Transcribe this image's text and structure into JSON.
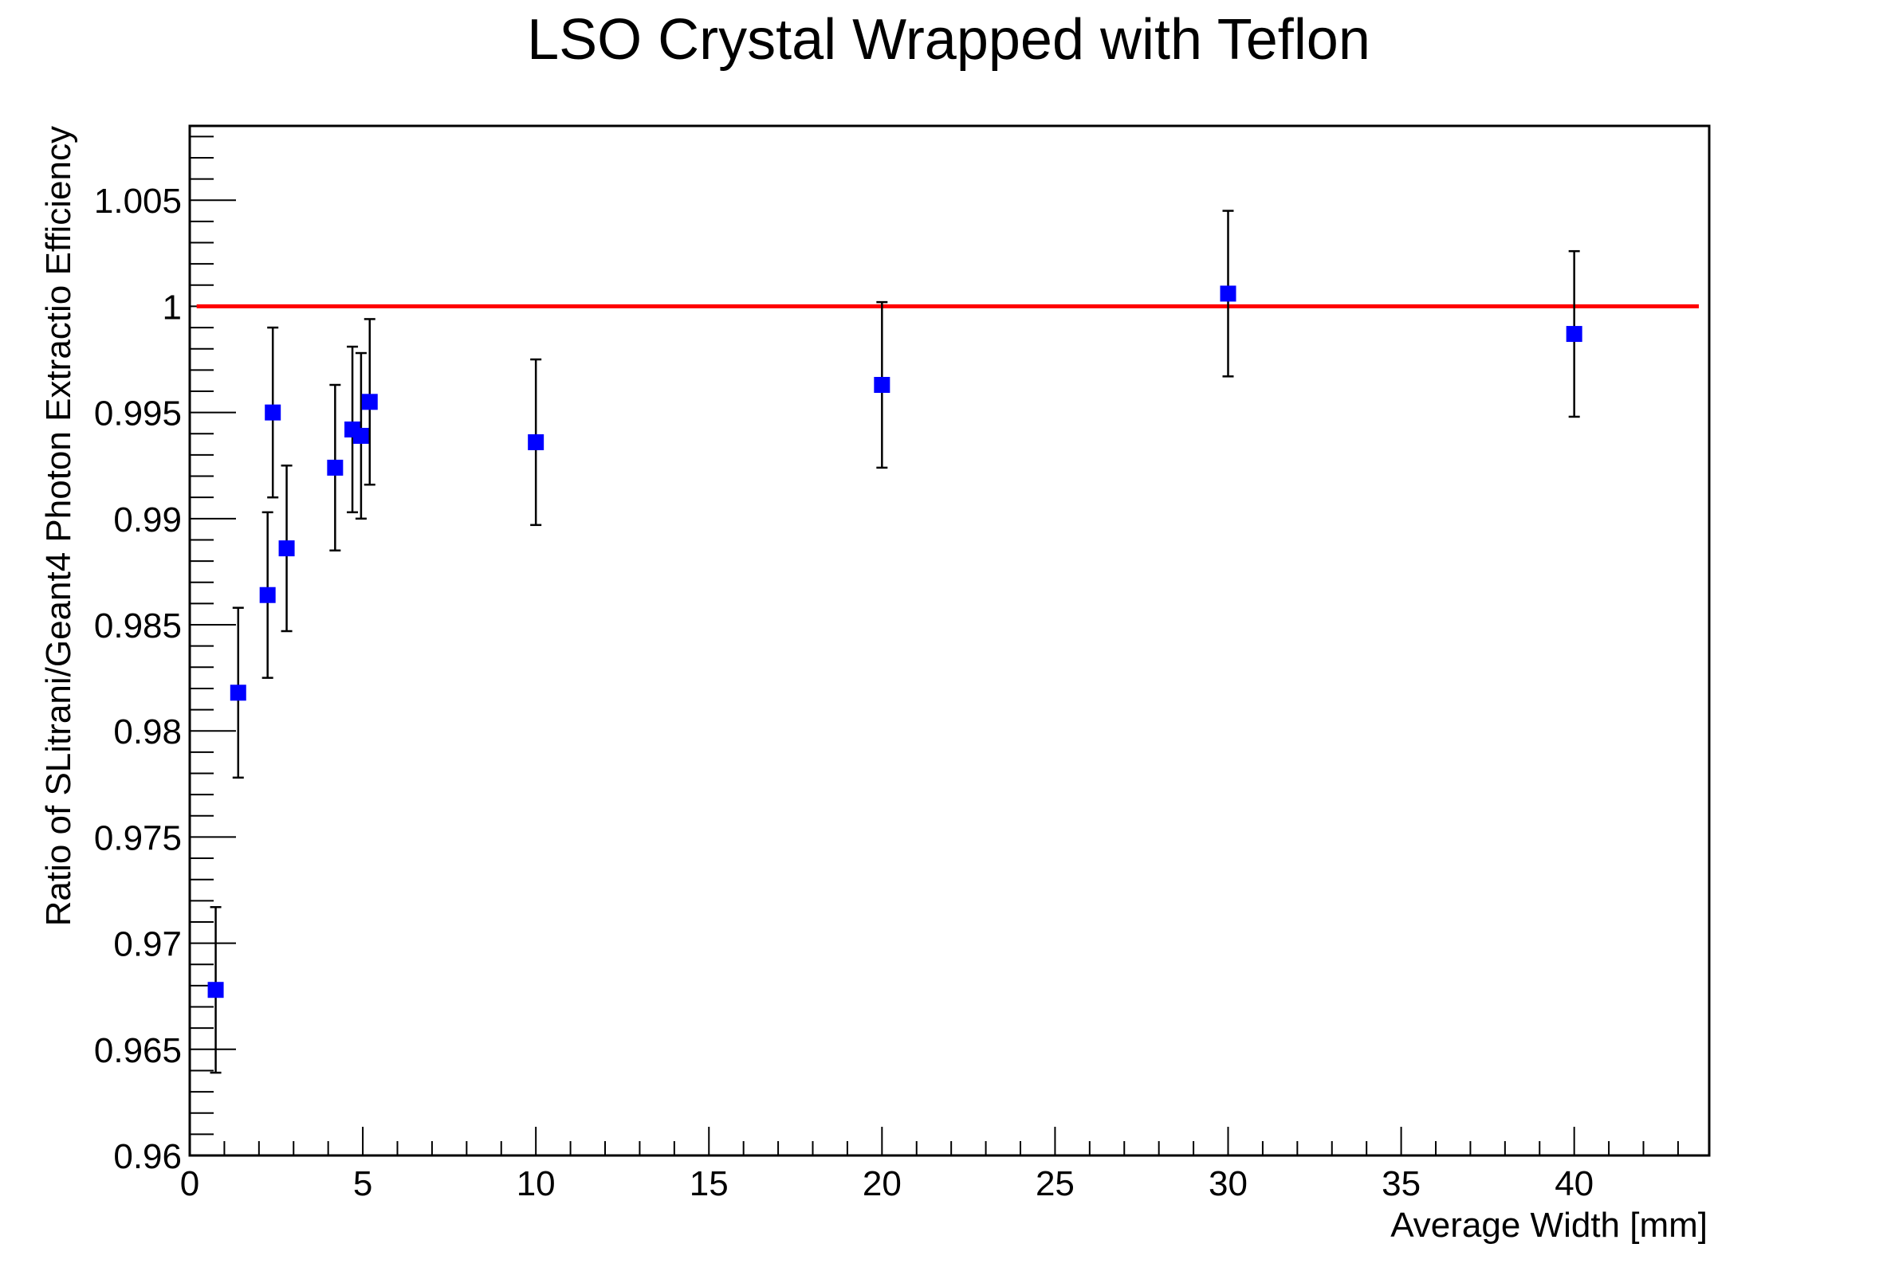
{
  "chart_data": {
    "type": "scatter",
    "title": "LSO Crystal Wrapped with Teflon",
    "xlabel": "Average Width [mm]",
    "ylabel": "Ratio of SLitrani/Geant4 Photon Extractio Efficiency",
    "xlim": [
      0,
      43.9
    ],
    "ylim": [
      0.96,
      1.0085
    ],
    "x_ticks": [
      0,
      5,
      10,
      15,
      20,
      25,
      30,
      35,
      40
    ],
    "x_tick_labels": [
      "0",
      "5",
      "10",
      "15",
      "20",
      "25",
      "30",
      "35",
      "40"
    ],
    "y_ticks": [
      0.96,
      0.965,
      0.97,
      0.975,
      0.98,
      0.985,
      0.99,
      0.995,
      1.0,
      1.005
    ],
    "y_tick_labels": [
      "0.96",
      "0.965",
      "0.97",
      "0.975",
      "0.98",
      "0.985",
      "0.99",
      "0.995",
      "1",
      "1.005"
    ],
    "grid": false,
    "series": [
      {
        "color": "#0000ff",
        "marker": "square",
        "points": [
          {
            "x": 0.75,
            "y": 0.9678,
            "err": 0.0039
          },
          {
            "x": 1.4,
            "y": 0.9818,
            "err": 0.004
          },
          {
            "x": 2.25,
            "y": 0.9864,
            "err": 0.0039
          },
          {
            "x": 2.4,
            "y": 0.995,
            "err": 0.004
          },
          {
            "x": 2.8,
            "y": 0.9886,
            "err": 0.0039
          },
          {
            "x": 4.2,
            "y": 0.9924,
            "err": 0.0039
          },
          {
            "x": 4.7,
            "y": 0.9942,
            "err": 0.0039
          },
          {
            "x": 4.95,
            "y": 0.9939,
            "err": 0.0039
          },
          {
            "x": 5.2,
            "y": 0.9955,
            "err": 0.0039
          },
          {
            "x": 10.0,
            "y": 0.9936,
            "err": 0.0039
          },
          {
            "x": 20.0,
            "y": 0.9963,
            "err": 0.0039
          },
          {
            "x": 30.0,
            "y": 1.0006,
            "err": 0.0039
          },
          {
            "x": 40.0,
            "y": 0.9987,
            "err": 0.0039
          }
        ]
      }
    ],
    "reference_line": {
      "y": 1.0,
      "x_range": [
        0.2,
        43.6
      ],
      "color": "#ff0000"
    }
  }
}
